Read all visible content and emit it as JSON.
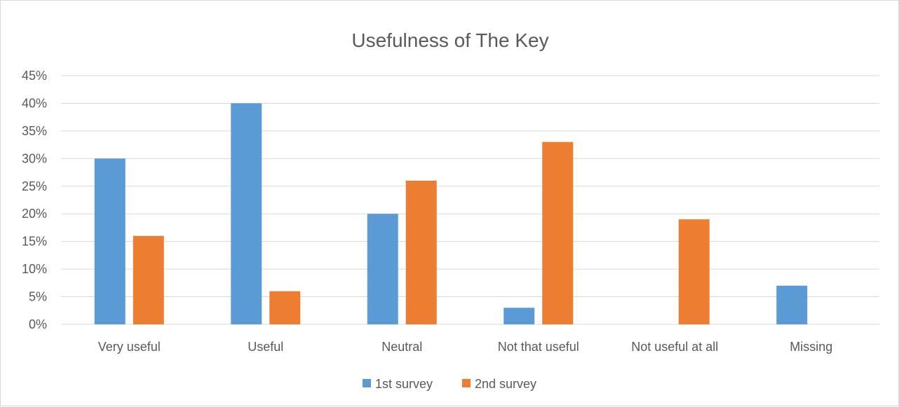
{
  "chart_data": {
    "type": "bar",
    "title": "Usefulness of The Key",
    "xlabel": "",
    "ylabel": "",
    "categories": [
      "Very useful",
      "Useful",
      "Neutral",
      "Not that useful",
      "Not useful at all",
      "Missing"
    ],
    "series": [
      {
        "name": "1st survey",
        "color": "#5b9bd5",
        "values": [
          30,
          40,
          20,
          3,
          0,
          7
        ]
      },
      {
        "name": "2nd survey",
        "color": "#ed7d31",
        "values": [
          16,
          6,
          26,
          33,
          19,
          0
        ]
      }
    ],
    "ylim": [
      0,
      45
    ],
    "yticks": [
      "0%",
      "5%",
      "10%",
      "15%",
      "20%",
      "25%",
      "30%",
      "35%",
      "40%",
      "45%"
    ],
    "y_unit": "percent",
    "grid": true,
    "legend_position": "bottom"
  }
}
